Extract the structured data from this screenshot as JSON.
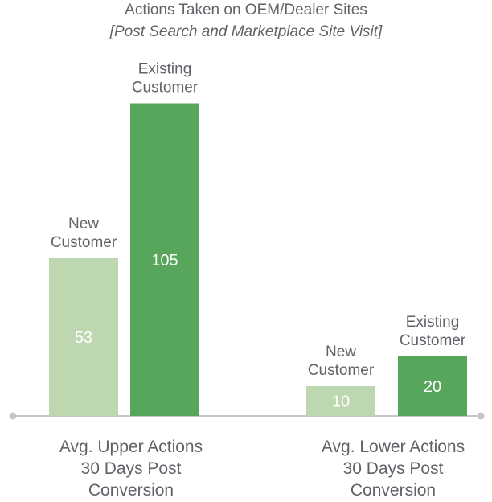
{
  "chart_data": {
    "type": "bar",
    "title": "Actions Taken on OEM/Dealer Sites",
    "subtitle": "[Post Search and Marketplace Site Visit]",
    "categories": [
      "Avg. Upper Actions 30 Days Post Conversion",
      "Avg. Lower Actions 30 Days Post Conversion"
    ],
    "category_lines": [
      [
        "Avg. Upper Actions",
        "30 Days Post",
        "Conversion"
      ],
      [
        "Avg. Lower Actions",
        "30 Days Post",
        "Conversion"
      ]
    ],
    "groups": [
      {
        "bars": [
          {
            "label_lines": [
              "New",
              "Customer"
            ],
            "value": 53,
            "color": "#bdd8b0"
          },
          {
            "label_lines": [
              "Existing",
              "Customer"
            ],
            "value": 105,
            "color": "#57a65b"
          }
        ]
      },
      {
        "bars": [
          {
            "label_lines": [
              "New",
              "Customer"
            ],
            "value": 10,
            "color": "#bdd8b0"
          },
          {
            "label_lines": [
              "Existing",
              "Customer"
            ],
            "value": 20,
            "color": "#57a65b"
          }
        ]
      }
    ],
    "grid": false,
    "legend": "none"
  }
}
